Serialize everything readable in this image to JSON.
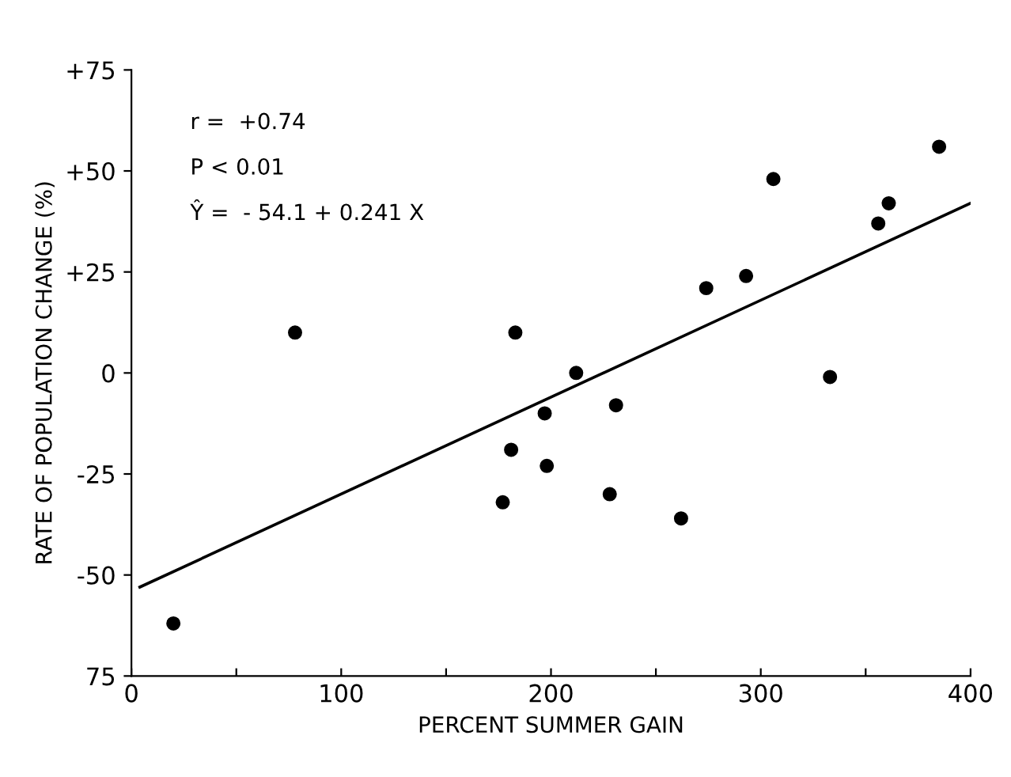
{
  "chart_data": {
    "type": "scatter",
    "xlabel": "PERCENT SUMMER GAIN",
    "ylabel": "RATE OF POPULATION CHANGE (%)",
    "annotations": [
      "r =  +0.74",
      "P < 0.01",
      "Ŷ =  - 54.1 + 0.241 X"
    ],
    "series": [
      {
        "color": "#000000",
        "marker": "circle",
        "x": [
          20,
          78,
          183,
          212,
          197,
          231,
          181,
          198,
          177,
          228,
          262,
          274,
          293,
          333,
          306,
          356,
          361,
          385
        ],
        "values": [
          -62,
          10,
          10,
          0,
          -10,
          -8,
          -19,
          -23,
          -32,
          -30,
          -36,
          21,
          24,
          -1,
          48,
          37,
          42,
          56
        ]
      },
      {
        "type": "line",
        "color": "#000000",
        "marker": "none",
        "line_style": "solid",
        "x": [
          4,
          400
        ],
        "values": [
          -53,
          42
        ]
      }
    ],
    "xlim": [
      0,
      400
    ],
    "ylim": [
      -75,
      75
    ],
    "xticks": [
      0,
      {
        "value": 50,
        "label": null
      },
      100,
      {
        "value": 150,
        "label": null
      },
      200,
      {
        "value": 250,
        "label": null
      },
      300,
      {
        "value": 350,
        "label": null
      },
      400
    ],
    "yticks": [
      {
        "value": -75,
        "label": "75"
      },
      {
        "value": -50,
        "label": "-50"
      },
      {
        "value": -25,
        "label": "-25"
      },
      0,
      {
        "value": 25,
        "label": "+25"
      },
      {
        "value": 50,
        "label": "+50"
      },
      {
        "value": 75,
        "label": "+75"
      }
    ],
    "grid": false,
    "legend": false
  }
}
